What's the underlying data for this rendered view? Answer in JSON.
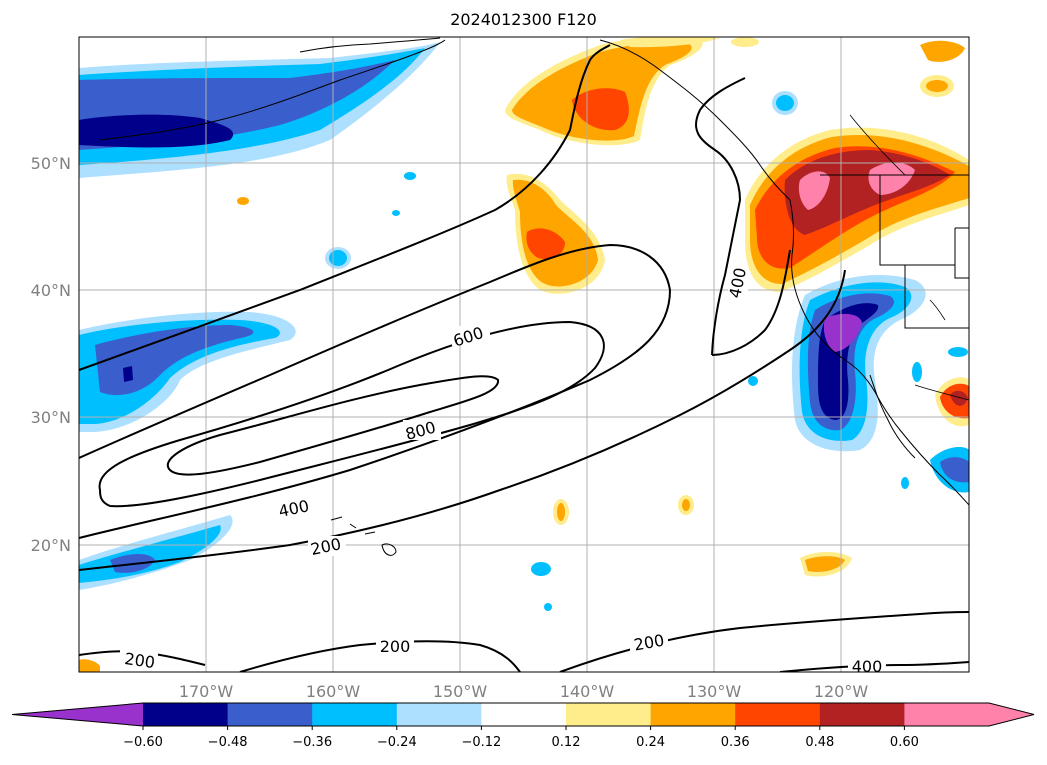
{
  "title": "2024012300 F120",
  "map": {
    "lon_labels": [
      "170°W",
      "160°W",
      "150°W",
      "140°W",
      "130°W",
      "120°W"
    ],
    "lat_labels": [
      "50°N",
      "40°N",
      "30°N",
      "20°N"
    ],
    "contour_labels": [
      {
        "text": "600"
      },
      {
        "text": "800"
      },
      {
        "text": "400"
      },
      {
        "text": "200"
      },
      {
        "text": "200"
      },
      {
        "text": "200"
      },
      {
        "text": "200"
      },
      {
        "text": "400"
      },
      {
        "text": "400"
      }
    ]
  },
  "colorbar": {
    "labels": [
      "−0.60",
      "−0.48",
      "−0.36",
      "−0.24",
      "−0.12",
      "0.12",
      "0.24",
      "0.36",
      "0.48",
      "0.60"
    ],
    "colors": [
      "#9932CC",
      "#00008B",
      "#3A5FCD",
      "#00BFFF",
      "#ADDFFF",
      "#FFFFFF",
      "#FFEC8B",
      "#FFA500",
      "#FF4500",
      "#B22222",
      "#FF82AB",
      "#FF82AB"
    ]
  }
}
